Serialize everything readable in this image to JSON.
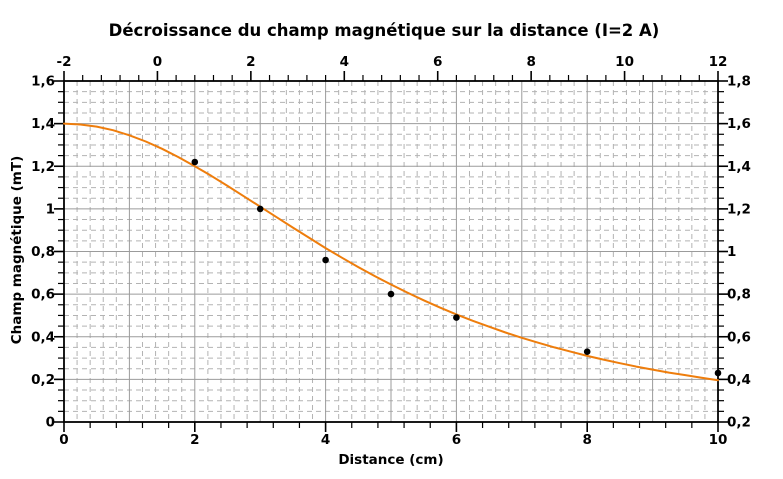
{
  "chart_data": {
    "type": "line",
    "title": "Décroissance du champ magnétique sur la distance (I=2 A)",
    "xlabel": "Distance (cm)",
    "ylabel": "Champ magnétique (mT)",
    "background": "#ffffff",
    "axes": {
      "bottom": {
        "min": 0,
        "max": 10,
        "major_step": 2,
        "tick_step": 0.4,
        "labels": [
          "0",
          "2",
          "4",
          "6",
          "8",
          "10"
        ]
      },
      "top": {
        "min": -2,
        "max": 12,
        "major_step": 2,
        "tick_step": 0.4,
        "labels": [
          "-2",
          "0",
          "2",
          "4",
          "6",
          "8",
          "10",
          "12"
        ]
      },
      "left": {
        "min": 0,
        "max": 1.6,
        "major_step": 0.2,
        "tick_step": 0.05,
        "labels": [
          "0",
          "0,2",
          "0,4",
          "0,6",
          "0,8",
          "1",
          "1,2",
          "1,4",
          "1,6"
        ]
      },
      "right": {
        "min": 0.2,
        "max": 1.8,
        "major_step": 0.2,
        "tick_step": 0.05,
        "labels": [
          "0,2",
          "0,4",
          "0,6",
          "0,8",
          "1",
          "1,2",
          "1,4",
          "1,6",
          "1,8"
        ]
      }
    },
    "grid": {
      "major_style": "solid",
      "major_color": "#9b9b9b",
      "minor_style": "dashed",
      "minor_color": "#b3b3b3",
      "minor_x_step": 0.2,
      "minor_y_step": 0.05,
      "major_x_step": 1,
      "major_y_step": 0.2
    },
    "series": [
      {
        "name": "model-curve",
        "type": "line",
        "color": "#ee7d0c",
        "points": [
          [
            0,
            1.4
          ],
          [
            0.25,
            1.396
          ],
          [
            0.5,
            1.386
          ],
          [
            0.75,
            1.369
          ],
          [
            1,
            1.345
          ],
          [
            1.25,
            1.316
          ],
          [
            1.5,
            1.282
          ],
          [
            1.75,
            1.243
          ],
          [
            2,
            1.2
          ],
          [
            2.25,
            1.155
          ],
          [
            2.5,
            1.108
          ],
          [
            2.75,
            1.059
          ],
          [
            3,
            1.01
          ],
          [
            3.25,
            0.961
          ],
          [
            3.5,
            0.912
          ],
          [
            3.75,
            0.864
          ],
          [
            4,
            0.816
          ],
          [
            4.25,
            0.771
          ],
          [
            4.5,
            0.727
          ],
          [
            4.75,
            0.685
          ],
          [
            5,
            0.645
          ],
          [
            5.25,
            0.607
          ],
          [
            5.5,
            0.571
          ],
          [
            5.75,
            0.537
          ],
          [
            6,
            0.505
          ],
          [
            6.25,
            0.475
          ],
          [
            6.5,
            0.447
          ],
          [
            6.75,
            0.42
          ],
          [
            7,
            0.395
          ],
          [
            7.25,
            0.372
          ],
          [
            7.5,
            0.35
          ],
          [
            7.75,
            0.33
          ],
          [
            8,
            0.31
          ],
          [
            8.25,
            0.293
          ],
          [
            8.5,
            0.276
          ],
          [
            8.75,
            0.26
          ],
          [
            9,
            0.246
          ],
          [
            9.25,
            0.232
          ],
          [
            9.5,
            0.22
          ],
          [
            9.75,
            0.208
          ],
          [
            10,
            0.196
          ]
        ]
      },
      {
        "name": "measured-points",
        "type": "scatter",
        "color": "#000000",
        "points": [
          [
            2,
            1.22
          ],
          [
            3,
            1.0
          ],
          [
            4,
            0.76
          ],
          [
            5,
            0.6
          ],
          [
            6,
            0.49
          ],
          [
            8,
            0.33
          ],
          [
            10,
            0.23
          ]
        ]
      }
    ]
  }
}
